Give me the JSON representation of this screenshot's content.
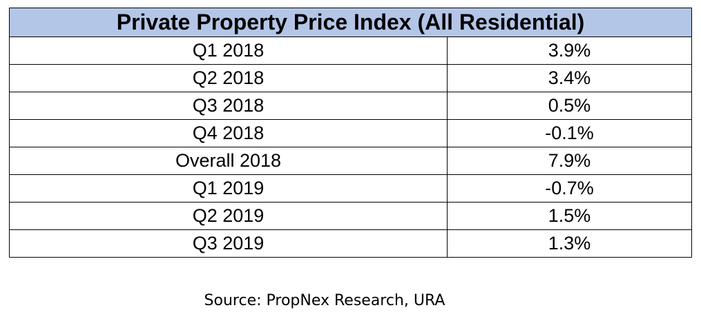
{
  "chart_data": {
    "type": "table",
    "title": "Private Property Price Index (All Residential)",
    "rows": [
      {
        "period": "Q1 2018",
        "value": "3.9%"
      },
      {
        "period": "Q2 2018",
        "value": "3.4%"
      },
      {
        "period": "Q3 2018",
        "value": "0.5%"
      },
      {
        "period": "Q4 2018",
        "value": "-0.1%"
      },
      {
        "period": "Overall 2018",
        "value": "7.9%"
      },
      {
        "period": "Q1 2019",
        "value": "-0.7%"
      },
      {
        "period": "Q2 2019",
        "value": "1.5%"
      },
      {
        "period": "Q3 2019",
        "value": "1.3%"
      }
    ],
    "source": "Source: PropNex Research, URA",
    "header_color": "#b4c6e7"
  }
}
